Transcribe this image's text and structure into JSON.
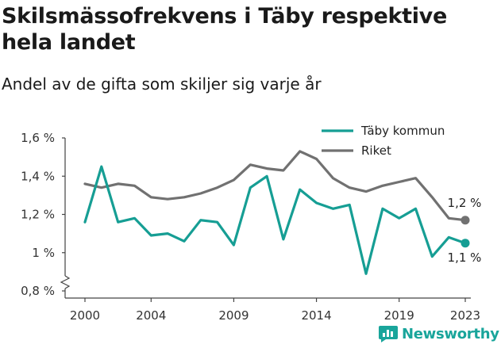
{
  "title": "Skilsmässofrekvens i Täby respektive hela landet",
  "subtitle": "Andel av de gifta som skiljer sig varje år",
  "brand": "Newsworthy",
  "colors": {
    "taby": "#169e94",
    "riket": "#717171",
    "axis": "#444444"
  },
  "chart_data": {
    "type": "line",
    "title": "Skilsmässofrekvens i Täby respektive hela landet",
    "subtitle": "Andel av de gifta som skiljer sig varje år",
    "xlabel": "",
    "ylabel": "",
    "x": [
      2000,
      2001,
      2002,
      2003,
      2004,
      2005,
      2006,
      2007,
      2008,
      2009,
      2010,
      2011,
      2012,
      2013,
      2014,
      2015,
      2016,
      2017,
      2018,
      2019,
      2020,
      2021,
      2022,
      2023
    ],
    "xticks": [
      2000,
      2004,
      2009,
      2014,
      2019,
      2023
    ],
    "xtick_labels": [
      "2000",
      "2004",
      "2009",
      "2014",
      "2019",
      "2023"
    ],
    "ylim": [
      0.8,
      1.6
    ],
    "yticks": [
      0.8,
      1.0,
      1.2,
      1.4,
      1.6
    ],
    "ytick_labels": [
      "0,8 %",
      "1 %",
      "1,2 %",
      "1,4 %",
      "1,6 %"
    ],
    "axis_break": true,
    "grid": false,
    "legend": "top-right",
    "series": [
      {
        "name": "Täby kommun",
        "color": "#169e94",
        "values": [
          1.16,
          1.45,
          1.16,
          1.18,
          1.09,
          1.1,
          1.06,
          1.17,
          1.16,
          1.04,
          1.34,
          1.4,
          1.07,
          1.33,
          1.26,
          1.23,
          1.25,
          0.89,
          1.23,
          1.18,
          1.23,
          0.98,
          1.08,
          1.05
        ],
        "end_label": "1,1 %"
      },
      {
        "name": "Riket",
        "color": "#717171",
        "values": [
          1.36,
          1.34,
          1.36,
          1.35,
          1.29,
          1.28,
          1.29,
          1.31,
          1.34,
          1.38,
          1.46,
          1.44,
          1.43,
          1.53,
          1.49,
          1.39,
          1.34,
          1.32,
          1.35,
          1.37,
          1.39,
          1.29,
          1.18,
          1.17
        ],
        "end_label": "1,2 %"
      }
    ]
  }
}
